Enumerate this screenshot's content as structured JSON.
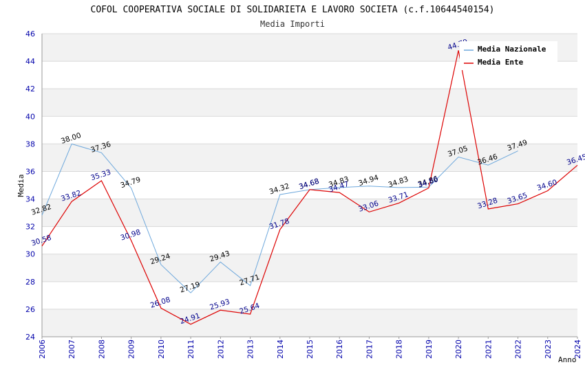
{
  "chart_data": {
    "type": "line",
    "title": "COFOL COOPERATIVA SOCIALE DI SOLIDARIETA E LAVORO SOCIETA (c.f.10644540154)",
    "subtitle": "Media Importi",
    "xlabel": "Anno",
    "ylabel": "Media",
    "ylim": [
      24,
      46
    ],
    "yticks": [
      24,
      26,
      28,
      30,
      32,
      34,
      36,
      38,
      40,
      42,
      44,
      46
    ],
    "x": [
      2006,
      2007,
      2008,
      2009,
      2010,
      2011,
      2012,
      2013,
      2014,
      2015,
      2016,
      2017,
      2018,
      2019,
      2020,
      2021,
      2022,
      2023,
      2024
    ],
    "series": [
      {
        "name": "Media Nazionale",
        "color": "#6ea8dc",
        "x": [
          2006,
          2007,
          2008,
          2009,
          2010,
          2011,
          2012,
          2013,
          2014,
          2015,
          2016,
          2017,
          2018,
          2019,
          2020,
          2021,
          2022
        ],
        "values": [
          32.82,
          38.0,
          37.36,
          34.79,
          29.24,
          27.19,
          29.43,
          27.71,
          34.32,
          34.68,
          34.83,
          34.94,
          34.83,
          34.86,
          37.05,
          36.46,
          37.49
        ],
        "labels": [
          "32.82",
          "38.00",
          "37.36",
          "34.79",
          "29.24",
          "27.19",
          "29.43",
          "27.71",
          "34.32",
          "34.68",
          "34.83",
          "34.94",
          "34.83",
          "34.86",
          "37.05",
          "36.46",
          "37.49"
        ]
      },
      {
        "name": "Media Ente",
        "color": "#dd0000",
        "x": [
          2006,
          2007,
          2008,
          2009,
          2010,
          2011,
          2012,
          2013,
          2014,
          2015,
          2016,
          2017,
          2018,
          2019,
          2020,
          2021,
          2022,
          2023,
          2024
        ],
        "values": [
          30.58,
          33.82,
          35.33,
          30.98,
          26.08,
          24.91,
          25.93,
          25.64,
          31.78,
          34.68,
          34.47,
          33.06,
          33.71,
          34.8,
          44.79,
          33.28,
          33.65,
          34.6,
          36.45
        ],
        "labels": [
          "30.58",
          "33.82",
          "35.33",
          "30.98",
          "26.08",
          "24.91",
          "25.93",
          "25.64",
          "31.78",
          "34.68",
          "34.47",
          "33.06",
          "33.71",
          "34.80",
          "44.79",
          "33.28",
          "33.65",
          "34.60",
          "36.45"
        ]
      }
    ],
    "legend": {
      "position": "top-right",
      "entries": [
        "Media Nazionale",
        "Media Ente"
      ]
    },
    "grid": true
  }
}
